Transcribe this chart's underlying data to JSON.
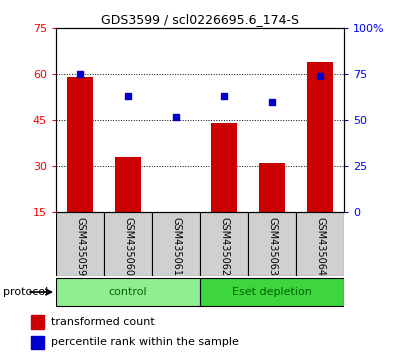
{
  "title": "GDS3599 / scl0226695.6_174-S",
  "samples": [
    "GSM435059",
    "GSM435060",
    "GSM435061",
    "GSM435062",
    "GSM435063",
    "GSM435064"
  ],
  "bar_values": [
    59.0,
    33.0,
    15.2,
    44.0,
    31.0,
    64.0
  ],
  "percentile_values": [
    75,
    63,
    52,
    63,
    60,
    74
  ],
  "bar_color": "#cc0000",
  "percentile_color": "#0000cc",
  "left_ylim": [
    15,
    75
  ],
  "left_yticks": [
    15,
    30,
    45,
    60,
    75
  ],
  "right_ylim": [
    0,
    100
  ],
  "right_yticks": [
    0,
    25,
    50,
    75,
    100
  ],
  "right_yticklabels": [
    "0",
    "25",
    "50",
    "75",
    "100%"
  ],
  "groups": [
    {
      "label": "control",
      "color": "#90ee90",
      "start": 0,
      "end": 3
    },
    {
      "label": "Eset depletion",
      "color": "#3dd63d",
      "start": 3,
      "end": 6
    }
  ],
  "protocol_label": "protocol",
  "legend_bar_label": "transformed count",
  "legend_pct_label": "percentile rank within the sample",
  "grid_yticks": [
    30,
    45,
    60
  ],
  "sample_bg_color": "#d0d0d0",
  "plot_bg": "#ffffff"
}
